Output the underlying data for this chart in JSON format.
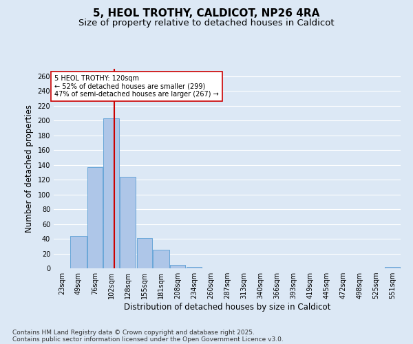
{
  "title": "5, HEOL TROTHY, CALDICOT, NP26 4RA",
  "subtitle": "Size of property relative to detached houses in Caldicot",
  "xlabel": "Distribution of detached houses by size in Caldicot",
  "ylabel": "Number of detached properties",
  "footer_line1": "Contains HM Land Registry data © Crown copyright and database right 2025.",
  "footer_line2": "Contains public sector information licensed under the Open Government Licence v3.0.",
  "bin_labels": [
    "23sqm",
    "49sqm",
    "76sqm",
    "102sqm",
    "128sqm",
    "155sqm",
    "181sqm",
    "208sqm",
    "234sqm",
    "260sqm",
    "287sqm",
    "313sqm",
    "340sqm",
    "366sqm",
    "393sqm",
    "419sqm",
    "445sqm",
    "472sqm",
    "498sqm",
    "525sqm",
    "551sqm"
  ],
  "bin_edges": [
    23,
    49,
    76,
    102,
    128,
    155,
    181,
    208,
    234,
    260,
    287,
    313,
    340,
    366,
    393,
    419,
    445,
    472,
    498,
    525,
    551,
    577
  ],
  "bar_values": [
    0,
    44,
    137,
    203,
    124,
    41,
    25,
    5,
    2,
    0,
    0,
    0,
    0,
    0,
    0,
    0,
    0,
    0,
    0,
    0,
    2
  ],
  "bar_color": "#aec6e8",
  "bar_edge_color": "#5a9fd4",
  "subject_size": 120,
  "red_line_color": "#cc0000",
  "annotation_text": "5 HEOL TROTHY: 120sqm\n← 52% of detached houses are smaller (299)\n47% of semi-detached houses are larger (267) →",
  "annotation_box_color": "#ffffff",
  "annotation_box_edge": "#cc0000",
  "ylim": [
    0,
    270
  ],
  "yticks": [
    0,
    20,
    40,
    60,
    80,
    100,
    120,
    140,
    160,
    180,
    200,
    220,
    240,
    260
  ],
  "background_color": "#dce8f5",
  "grid_color": "#ffffff",
  "title_fontsize": 11,
  "subtitle_fontsize": 9.5,
  "axis_label_fontsize": 8.5,
  "tick_fontsize": 7,
  "annotation_fontsize": 7,
  "footer_fontsize": 6.5
}
